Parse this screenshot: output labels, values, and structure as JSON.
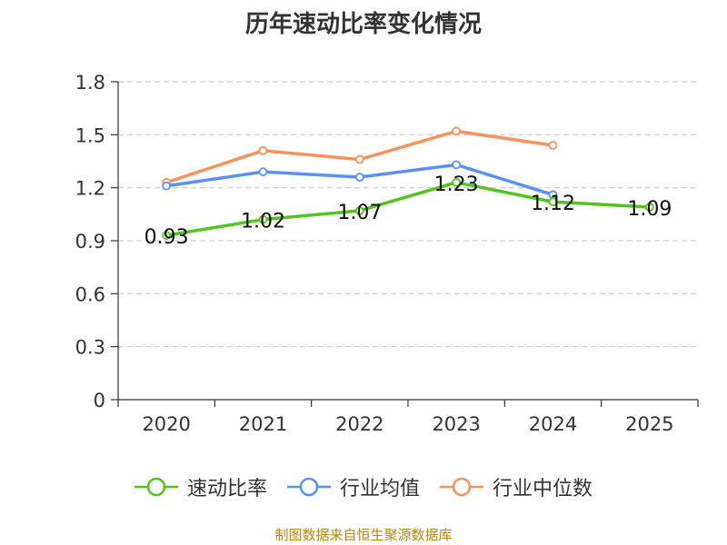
{
  "chart_data": {
    "type": "line",
    "title": "历年速动比率变化情况",
    "categories": [
      "2020",
      "2021",
      "2022",
      "2023",
      "2024",
      "2025"
    ],
    "y_ticks": [
      "0",
      "0.3",
      "0.6",
      "0.9",
      "1.2",
      "1.5",
      "1.8"
    ],
    "ylim": [
      0,
      1.8
    ],
    "grid": true,
    "legend_position": "bottom",
    "series": [
      {
        "name": "速动比率",
        "color": "#52c41a",
        "values": [
          0.93,
          1.02,
          1.07,
          1.23,
          1.12,
          1.09
        ],
        "labels": [
          "0.93",
          "1.02",
          "1.07",
          "1.23",
          "1.12",
          "1.09"
        ]
      },
      {
        "name": "行业均值",
        "color": "#5b8ff9",
        "values": [
          1.21,
          1.29,
          1.26,
          1.33,
          1.16,
          null
        ]
      },
      {
        "name": "行业中位数",
        "color": "#f7935e",
        "values": [
          1.23,
          1.41,
          1.36,
          1.52,
          1.44,
          null
        ]
      }
    ],
    "source": "制图数据来自恒生聚源数据库"
  }
}
